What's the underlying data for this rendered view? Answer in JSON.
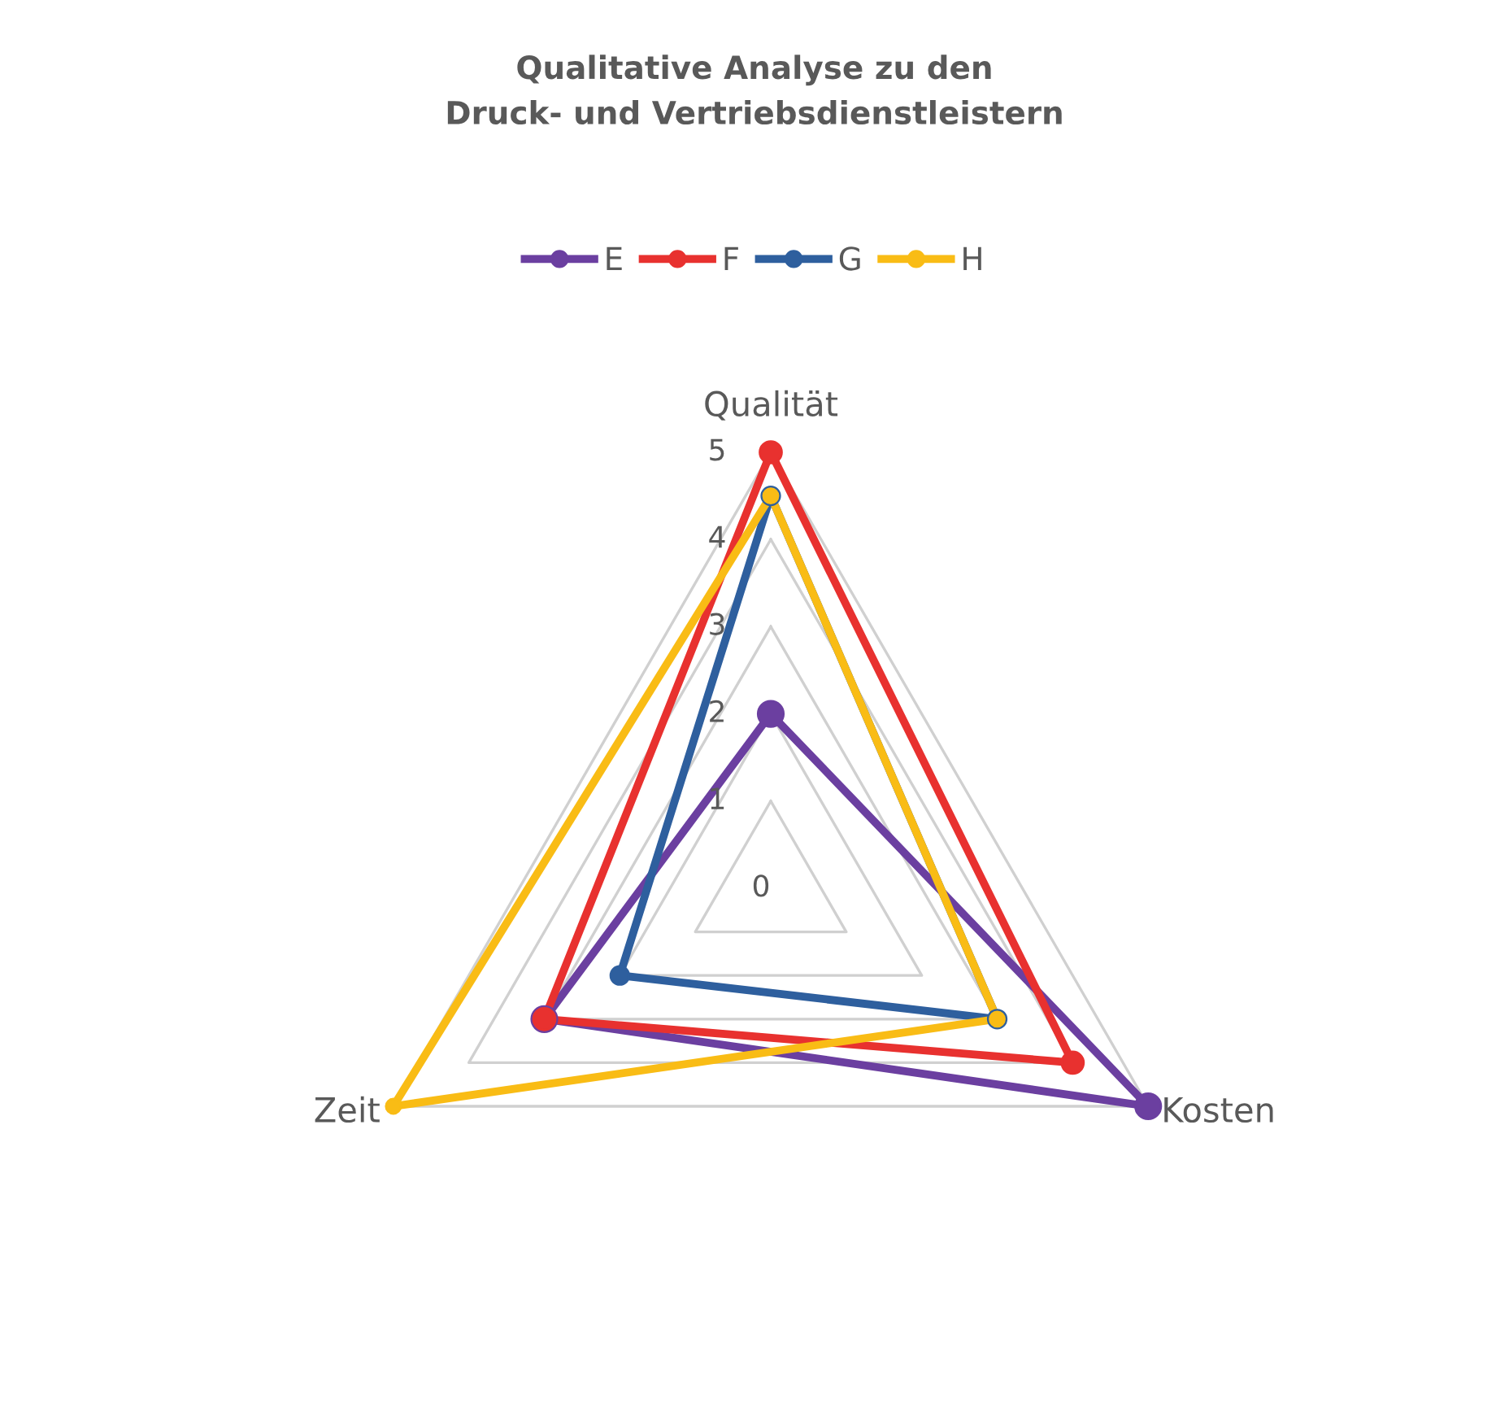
{
  "chart_data": {
    "type": "radar",
    "title": "Qualitative Analyse zu den\nDruck- und Vertriebsdienstleistern",
    "categories": [
      "Qualität",
      "Kosten",
      "Zeit"
    ],
    "series": [
      {
        "name": "E",
        "color": "#6b3fa0",
        "values": [
          2,
          5,
          3
        ]
      },
      {
        "name": "F",
        "color": "#e8312f",
        "values": [
          5,
          4,
          3
        ]
      },
      {
        "name": "G",
        "color": "#2e5f9e",
        "values": [
          4.5,
          3,
          2
        ]
      },
      {
        "name": "H",
        "color": "#f9bc15",
        "values": [
          4.5,
          3,
          5
        ]
      }
    ],
    "ylim": [
      0,
      5
    ],
    "yticks": [
      0,
      1,
      2,
      3,
      4,
      5
    ],
    "grid": true,
    "legend": "top",
    "marker": "circle",
    "line_style": "solid"
  }
}
